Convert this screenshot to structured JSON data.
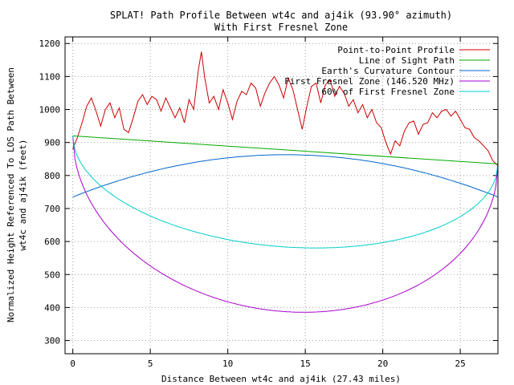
{
  "chart_data": {
    "type": "line",
    "title_line1": "SPLAT! Path Profile Between wt4c and aj4ik (93.90° azimuth)",
    "title_line2": "With First Fresnel Zone",
    "xlabel": "Distance Between wt4c and aj4ik (27.43 miles)",
    "ylabel_line1": "Normalized Height Referenced To LOS Path Between",
    "ylabel_line2": "wt4c and aj4ik (feet)",
    "xlim": [
      -0.5,
      27.43
    ],
    "ylim": [
      260,
      1220
    ],
    "x_ticks": [
      0,
      5,
      10,
      15,
      20,
      25
    ],
    "y_ticks": [
      300,
      400,
      500,
      600,
      700,
      800,
      900,
      1000,
      1100,
      1200
    ],
    "grid": true,
    "legend_position": "top-right",
    "path_length": 27.43,
    "series": [
      {
        "name": "Point-to-Point Profile",
        "color": "#cc0000",
        "points": [
          [
            0,
            880
          ],
          [
            0.3,
            915
          ],
          [
            0.6,
            960
          ],
          [
            0.9,
            1010
          ],
          [
            1.2,
            1035
          ],
          [
            1.5,
            995
          ],
          [
            1.8,
            950
          ],
          [
            2.1,
            1000
          ],
          [
            2.4,
            1020
          ],
          [
            2.7,
            975
          ],
          [
            3.0,
            1005
          ],
          [
            3.3,
            940
          ],
          [
            3.6,
            930
          ],
          [
            3.9,
            975
          ],
          [
            4.2,
            1025
          ],
          [
            4.5,
            1045
          ],
          [
            4.8,
            1015
          ],
          [
            5.1,
            1040
          ],
          [
            5.4,
            1030
          ],
          [
            5.7,
            995
          ],
          [
            6.0,
            1035
          ],
          [
            6.3,
            1005
          ],
          [
            6.6,
            975
          ],
          [
            6.9,
            1005
          ],
          [
            7.2,
            960
          ],
          [
            7.5,
            1030
          ],
          [
            7.8,
            1000
          ],
          [
            8.1,
            1120
          ],
          [
            8.3,
            1175
          ],
          [
            8.5,
            1100
          ],
          [
            8.8,
            1020
          ],
          [
            9.1,
            1040
          ],
          [
            9.4,
            1000
          ],
          [
            9.7,
            1060
          ],
          [
            10.0,
            1020
          ],
          [
            10.3,
            970
          ],
          [
            10.6,
            1025
          ],
          [
            10.9,
            1055
          ],
          [
            11.2,
            1045
          ],
          [
            11.5,
            1080
          ],
          [
            11.8,
            1065
          ],
          [
            12.1,
            1010
          ],
          [
            12.4,
            1050
          ],
          [
            12.7,
            1080
          ],
          [
            13.0,
            1100
          ],
          [
            13.3,
            1075
          ],
          [
            13.6,
            1035
          ],
          [
            13.9,
            1095
          ],
          [
            14.2,
            1060
          ],
          [
            14.5,
            1000
          ],
          [
            14.8,
            940
          ],
          [
            15.1,
            1010
          ],
          [
            15.4,
            1070
          ],
          [
            15.7,
            1080
          ],
          [
            16.0,
            1020
          ],
          [
            16.3,
            1075
          ],
          [
            16.6,
            1090
          ],
          [
            16.9,
            1040
          ],
          [
            17.2,
            1070
          ],
          [
            17.5,
            1050
          ],
          [
            17.8,
            1010
          ],
          [
            18.1,
            1030
          ],
          [
            18.4,
            990
          ],
          [
            18.7,
            1015
          ],
          [
            19.0,
            975
          ],
          [
            19.3,
            1000
          ],
          [
            19.6,
            960
          ],
          [
            19.9,
            945
          ],
          [
            20.2,
            900
          ],
          [
            20.5,
            865
          ],
          [
            20.8,
            905
          ],
          [
            21.1,
            890
          ],
          [
            21.4,
            935
          ],
          [
            21.7,
            960
          ],
          [
            22.0,
            965
          ],
          [
            22.3,
            925
          ],
          [
            22.6,
            955
          ],
          [
            22.9,
            960
          ],
          [
            23.2,
            990
          ],
          [
            23.5,
            975
          ],
          [
            23.8,
            995
          ],
          [
            24.1,
            1000
          ],
          [
            24.4,
            980
          ],
          [
            24.7,
            995
          ],
          [
            25.0,
            970
          ],
          [
            25.3,
            945
          ],
          [
            25.6,
            940
          ],
          [
            25.9,
            915
          ],
          [
            26.2,
            905
          ],
          [
            26.5,
            890
          ],
          [
            26.8,
            875
          ],
          [
            27.1,
            845
          ],
          [
            27.43,
            830
          ]
        ]
      },
      {
        "name": "Line of Sight Path",
        "color": "#00aa00",
        "start": 920,
        "end": 835
      },
      {
        "name": "Earth's Curvature Contour",
        "color": "#0066cc",
        "start": 735,
        "end": 735,
        "mid": 863
      },
      {
        "name": "First Fresnel Zone (146.520 MHz)",
        "color": "#aa00cc",
        "depth": 490
      },
      {
        "name": "60% of First Fresnel Zone",
        "color": "#00cccc",
        "depth": 294
      }
    ]
  }
}
